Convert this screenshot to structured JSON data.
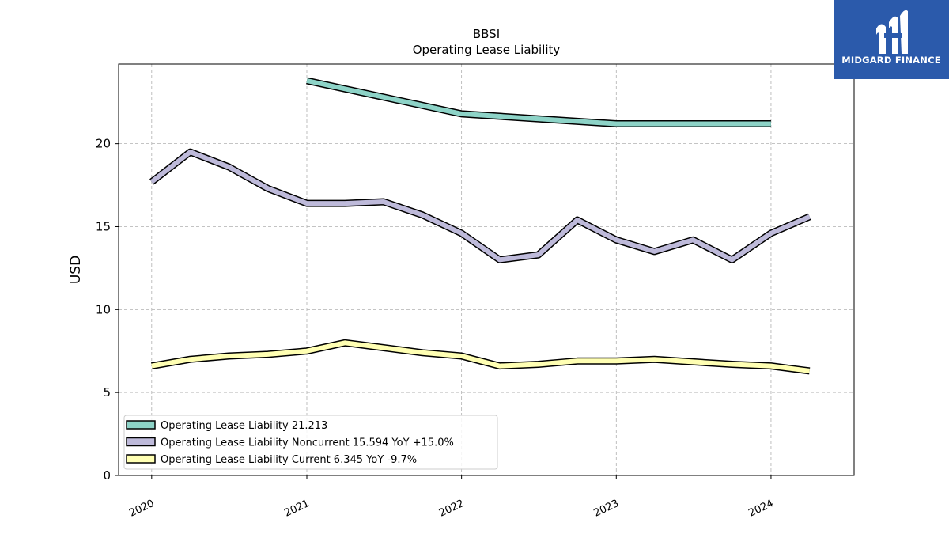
{
  "chart_data": {
    "type": "line",
    "title": "BBSI",
    "subtitle": "Operating Lease Liability",
    "ylabel": "USD",
    "xlabel": "",
    "ylim": [
      0,
      24.8
    ],
    "xlim": [
      "2019-10-15",
      "2024-07-15"
    ],
    "yticks": [
      0,
      5,
      10,
      15,
      20
    ],
    "xticks": [
      "2020",
      "2021",
      "2022",
      "2023",
      "2024"
    ],
    "grid": true,
    "legend_position": "lower-left",
    "series": [
      {
        "name": "Operating Lease Liability",
        "legend": "Operating Lease Liability  21.213",
        "color": "#8dd3c7",
        "x": [
          "2021-01-01",
          "2022-01-01",
          "2023-01-01",
          "2024-01-01"
        ],
        "y": [
          23.8,
          21.8,
          21.2,
          21.2
        ]
      },
      {
        "name": "Operating Lease Liability Noncurrent",
        "legend": "Operating Lease Liability Noncurrent  15.594 YoY +15.0%",
        "color": "#bebada",
        "x": [
          "2020-01-01",
          "2020-04-01",
          "2020-07-01",
          "2020-10-01",
          "2021-01-01",
          "2021-04-01",
          "2021-07-01",
          "2021-10-01",
          "2022-01-01",
          "2022-04-01",
          "2022-07-01",
          "2022-10-01",
          "2023-01-01",
          "2023-04-01",
          "2023-07-01",
          "2023-10-01",
          "2024-01-01",
          "2024-04-01"
        ],
        "y": [
          17.7,
          19.5,
          18.6,
          17.3,
          16.4,
          16.4,
          16.5,
          15.7,
          14.6,
          13.0,
          13.3,
          15.4,
          14.2,
          13.5,
          14.2,
          13.0,
          14.6,
          15.6
        ]
      },
      {
        "name": "Operating Lease Liability Current",
        "legend": "Operating Lease Liability Current  6.345 YoY -9.7%",
        "color": "#ffffb3",
        "x": [
          "2020-01-01",
          "2020-04-01",
          "2020-07-01",
          "2020-10-01",
          "2021-01-01",
          "2021-04-01",
          "2021-07-01",
          "2021-10-01",
          "2022-01-01",
          "2022-04-01",
          "2022-07-01",
          "2022-10-01",
          "2023-01-01",
          "2023-04-01",
          "2023-07-01",
          "2023-10-01",
          "2024-01-01",
          "2024-04-01"
        ],
        "y": [
          6.6,
          7.0,
          7.2,
          7.3,
          7.5,
          8.0,
          7.7,
          7.4,
          7.2,
          6.6,
          6.7,
          6.9,
          6.9,
          7.0,
          6.85,
          6.7,
          6.6,
          6.3
        ]
      }
    ]
  },
  "brand": {
    "name": "MIDGARD FINANCE",
    "color": "#2b5aab"
  }
}
